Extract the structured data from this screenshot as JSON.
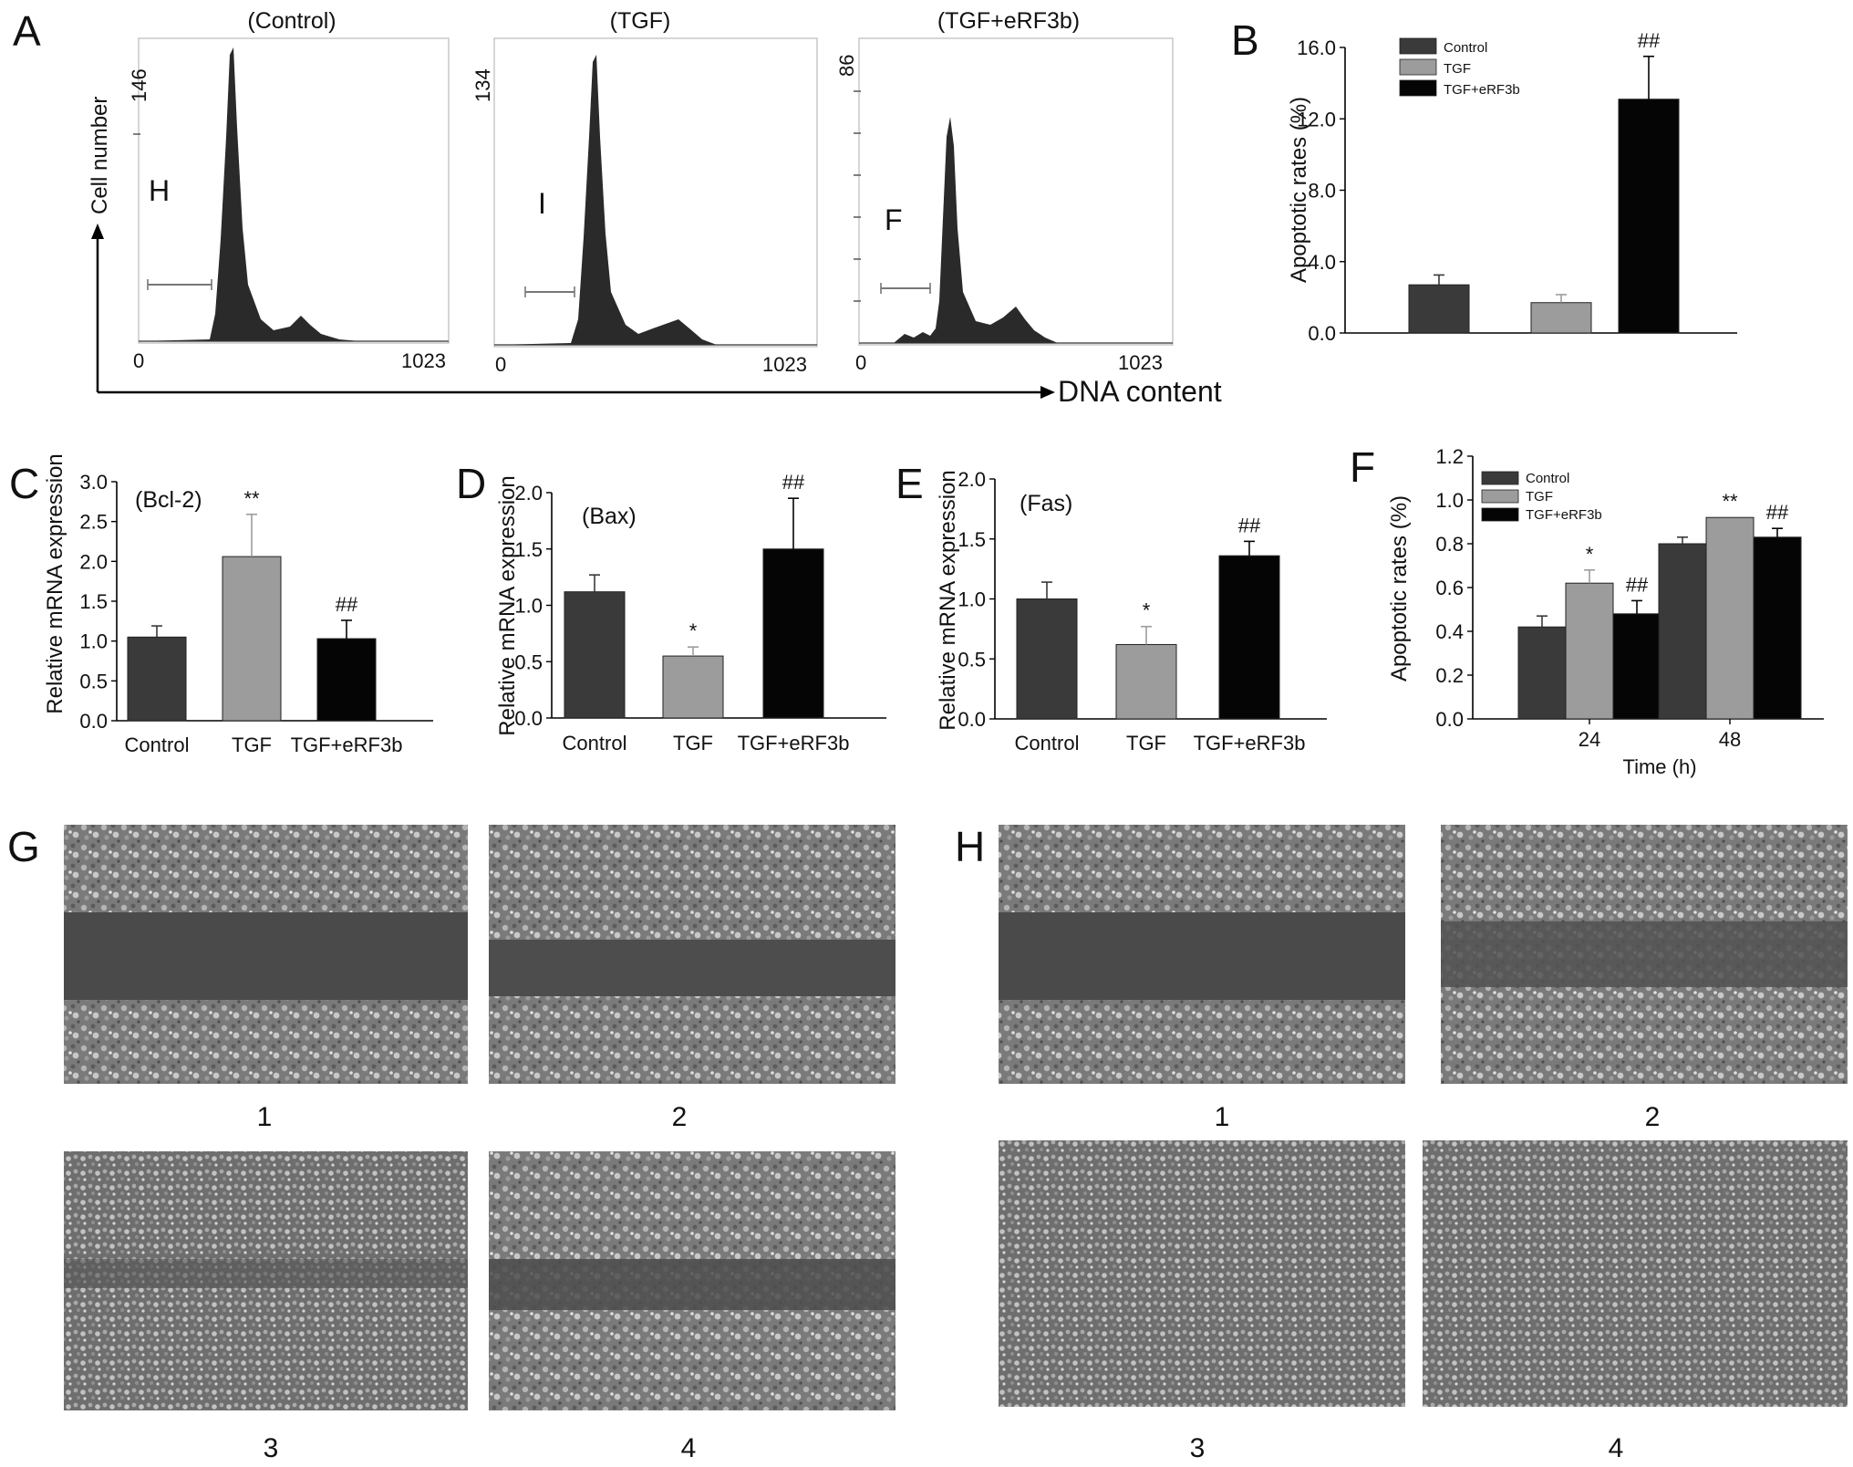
{
  "colors": {
    "control": "#3a3a3a",
    "tgf": "#9c9c9c",
    "erf": "#050505",
    "hist": "#2a2a2a"
  },
  "panel_A": {
    "label": "A",
    "y_axis_label": "Cell number",
    "x_axis_label": "DNA content",
    "histograms": [
      {
        "title": "(Control)",
        "ymax_label": "146",
        "letter": "H",
        "xmin_label": "0",
        "xmax_label": "1023"
      },
      {
        "title": "(TGF)",
        "ymax_label": "134",
        "letter": "I",
        "xmin_label": "0",
        "xmax_label": "1023"
      },
      {
        "title": "(TGF+eRF3b)",
        "ymax_label": "86",
        "letter": "F",
        "xmin_label": "0",
        "xmax_label": "1023"
      }
    ]
  },
  "photos_G": {
    "label": "G",
    "captions": [
      "1",
      "2",
      "3",
      "4"
    ]
  },
  "photos_H": {
    "label": "H",
    "captions": [
      "1",
      "2",
      "3",
      "4"
    ]
  },
  "chart_data": [
    {
      "panel": "B",
      "type": "bar",
      "ylabel": "Apoptotic rates (%)",
      "ylim": [
        0,
        16
      ],
      "yticks": [
        "0.0",
        "4.0",
        "8.0",
        "12.0",
        "16.0"
      ],
      "legend": "top-left",
      "categories": [
        "Control",
        "TGF",
        "TGF+eRF3b"
      ],
      "values": [
        2.7,
        1.7,
        13.1
      ],
      "errors": [
        0.55,
        0.45,
        2.4
      ],
      "annotations": [
        "",
        "",
        "##"
      ]
    },
    {
      "panel": "C",
      "type": "bar",
      "title": "(Bcl-2)",
      "ylabel": "Relative mRNA expression",
      "ylim": [
        0,
        3
      ],
      "yticks": [
        "0.0",
        "0.5",
        "1.0",
        "1.5",
        "2.0",
        "2.5",
        "3.0"
      ],
      "categories": [
        "Control",
        "TGF",
        "TGF+eRF3b"
      ],
      "values": [
        1.05,
        2.06,
        1.03
      ],
      "errors": [
        0.14,
        0.53,
        0.23
      ],
      "annotations": [
        "",
        "**",
        "##"
      ]
    },
    {
      "panel": "D",
      "type": "bar",
      "title": "(Bax)",
      "ylabel": "Relative mRNA expression",
      "ylim": [
        0,
        2
      ],
      "yticks": [
        "0.0",
        "0.5",
        "1.0",
        "1.5",
        "2.0"
      ],
      "categories": [
        "Control",
        "TGF",
        "TGF+eRF3b"
      ],
      "values": [
        1.12,
        0.55,
        1.5
      ],
      "errors": [
        0.15,
        0.08,
        0.45
      ],
      "annotations": [
        "",
        "*",
        "##"
      ]
    },
    {
      "panel": "E",
      "type": "bar",
      "title": "(Fas)",
      "ylabel": "Relative mRNA expression",
      "ylim": [
        0,
        2
      ],
      "yticks": [
        "0.0",
        "0.5",
        "1.0",
        "1.5",
        "2.0"
      ],
      "categories": [
        "Control",
        "TGF",
        "TGF+eRF3b"
      ],
      "values": [
        1.0,
        0.62,
        1.36
      ],
      "errors": [
        0.14,
        0.15,
        0.12
      ],
      "annotations": [
        "",
        "*",
        "##"
      ]
    },
    {
      "panel": "F",
      "type": "bar",
      "xlabel": "Time (h)",
      "ylabel": "Apoptotic rates (%)",
      "ylim": [
        0,
        1.2
      ],
      "yticks": [
        "0.0",
        "0.2",
        "0.4",
        "0.6",
        "0.8",
        "1.0",
        "1.2"
      ],
      "legend": "top-left",
      "categories": [
        "24",
        "48"
      ],
      "series": [
        {
          "name": "Control",
          "values": [
            0.42,
            0.8
          ],
          "errors": [
            0.05,
            0.03
          ],
          "annotations": [
            "",
            ""
          ]
        },
        {
          "name": "TGF",
          "values": [
            0.62,
            0.92
          ],
          "errors": [
            0.06,
            0.0
          ],
          "annotations": [
            "*",
            "**"
          ]
        },
        {
          "name": "TGF+eRF3b",
          "values": [
            0.48,
            0.83
          ],
          "errors": [
            0.06,
            0.04
          ],
          "annotations": [
            "##",
            "##"
          ]
        }
      ]
    }
  ]
}
